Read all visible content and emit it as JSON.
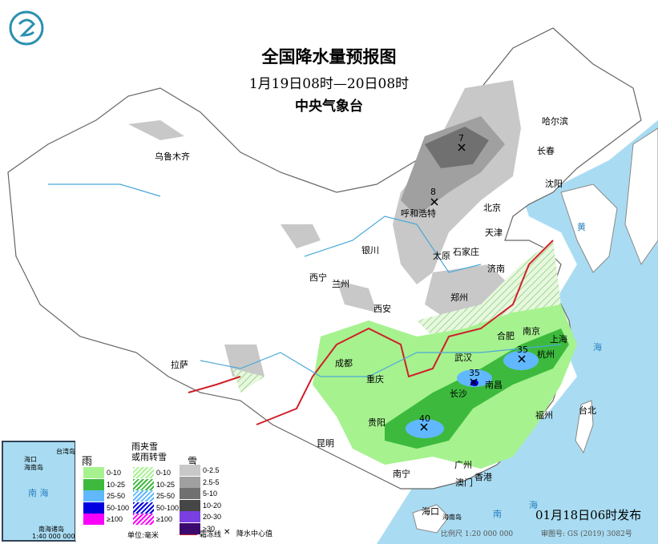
{
  "header": {
    "title": "全国降水量预报图",
    "period": "1月19日08时—20日08时",
    "agency": "中央气象台"
  },
  "cities": [
    "乌鲁木齐",
    "哈尔滨",
    "长春",
    "沈阳",
    "呼和浩特",
    "北京",
    "天津",
    "银川",
    "石家庄",
    "太原",
    "济南",
    "西宁",
    "兰州",
    "郑州",
    "西安",
    "合肥",
    "南京",
    "上海",
    "武汉",
    "杭州",
    "成都",
    "重庆",
    "长沙",
    "南昌",
    "拉萨",
    "贵阳",
    "福州",
    "台北",
    "昆明",
    "南宁",
    "广州",
    "澳门",
    "香港",
    "海口"
  ],
  "center_values": [
    "7",
    "8",
    "35",
    "35",
    "40"
  ],
  "legend": {
    "rain": {
      "title": "雨",
      "items": [
        {
          "label": "0-10",
          "color": "#a6f28f"
        },
        {
          "label": "10-25",
          "color": "#3dba3d"
        },
        {
          "label": "25-50",
          "color": "#61b8ff"
        },
        {
          "label": "50-100",
          "color": "#0000e1"
        },
        {
          "label": "≥100",
          "color": "#fa00fa"
        }
      ]
    },
    "mixed": {
      "title1": "雨夹雪",
      "title2": "或雨转雪",
      "items": [
        {
          "label": "0-10",
          "color": "#a6f28f"
        },
        {
          "label": "10-25",
          "color": "#3dba3d"
        },
        {
          "label": "25-50",
          "color": "#61b8ff"
        },
        {
          "label": "50-100",
          "color": "#0000e1"
        },
        {
          "label": "≥100",
          "color": "#fa00fa"
        }
      ]
    },
    "snow": {
      "title": "雪",
      "items": [
        {
          "label": "0-2.5",
          "color": "#c8c8c8"
        },
        {
          "label": "2.5-5",
          "color": "#a0a0a0"
        },
        {
          "label": "5-10",
          "color": "#707070"
        },
        {
          "label": "10-20",
          "color": "#464646"
        },
        {
          "label": "20-30",
          "color": "#7a3fe0"
        },
        {
          "label": "≥30",
          "color": "#3c0a6e"
        }
      ]
    },
    "unit": "单位:毫米",
    "frost_line": "霜冻线",
    "center_label": "降水中心值"
  },
  "inset": {
    "label": "南海诸岛",
    "scale": "1:40 000 000",
    "sea": "南 海",
    "island": "海南岛",
    "taiwan": "台湾岛",
    "city": "海口"
  },
  "sea_labels": {
    "south1": "南",
    "south2": "海",
    "hainan": "海南岛",
    "yellow": "黄",
    "east": "海"
  },
  "footer": {
    "issued": "01月18日06时发布",
    "scale": "比例尺 1:20 000 000",
    "map_no": "审图号: GS (2019) 3082号"
  }
}
